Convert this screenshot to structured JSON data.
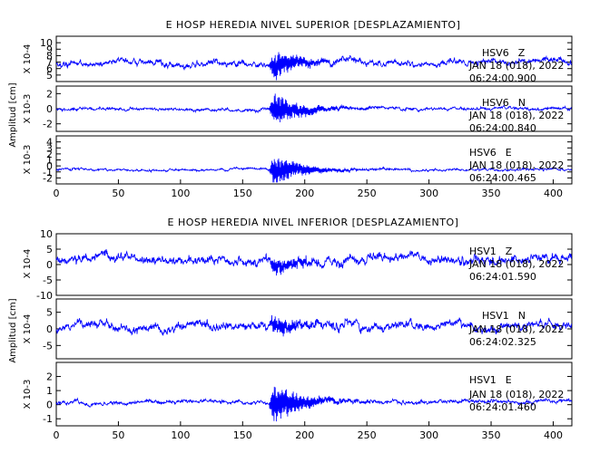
{
  "chart_data": [
    {
      "type": "line",
      "title": "E HOSP HEREDIA NIVEL SUPERIOR [DESPLAZAMIENTO]",
      "ylabel": "Amplitud [cm]",
      "xlim": [
        0,
        415
      ],
      "x_ticks": [
        0,
        50,
        100,
        150,
        200,
        250,
        300,
        350,
        400
      ],
      "x_tick_labels": [
        "0",
        "50",
        "100",
        "150",
        "200",
        "250",
        "300",
        "350",
        "400"
      ],
      "grid": false,
      "panels": [
        {
          "name": "HSV6 Z",
          "station": "HSV6",
          "component": "Z",
          "date": "JAN 18 (018), 2022",
          "time": "06:24:00.900",
          "scale": "X 10-4",
          "ylim": [
            4,
            11
          ],
          "y_ticks": [
            5,
            6,
            7,
            8,
            9,
            10
          ],
          "y_tick_labels": [
            "5",
            "6",
            "7",
            "8",
            "9",
            "10"
          ],
          "baseline": 6.8,
          "noise": 0.8,
          "event_amp": 2.3,
          "seed": 11,
          "values": []
        },
        {
          "name": "HSV6 N",
          "station": "HSV6",
          "component": "N",
          "date": "JAN 18 (018), 2022",
          "time": "06:24:00.840",
          "scale": "X 10-3",
          "ylim": [
            -3,
            3
          ],
          "y_ticks": [
            -2,
            0,
            2
          ],
          "y_tick_labels": [
            "-2",
            "0",
            "2"
          ],
          "baseline": 0,
          "noise": 0.35,
          "event_amp": 2.3,
          "seed": 23,
          "values": []
        },
        {
          "name": "HSV6 E",
          "station": "HSV6",
          "component": "E",
          "date": "JAN 18 (018), 2022",
          "time": "06:24:00.465",
          "scale": "X 10-3",
          "ylim": [
            -3,
            5
          ],
          "y_ticks": [
            -2,
            -1,
            0,
            1,
            2,
            3,
            4
          ],
          "y_tick_labels": [
            "-2",
            "-1",
            "0",
            "1",
            "2",
            "3",
            "4"
          ],
          "baseline": -0.6,
          "noise": 0.35,
          "event_amp": 2.8,
          "seed": 37,
          "values": []
        }
      ]
    },
    {
      "type": "line",
      "title": "E HOSP HEREDIA NIVEL INFERIOR [DESPLAZAMIENTO]",
      "ylabel": "Amplitud [cm]",
      "xlim": [
        0,
        415
      ],
      "x_ticks": [
        0,
        50,
        100,
        150,
        200,
        250,
        300,
        350,
        400
      ],
      "x_tick_labels": [
        "0",
        "50",
        "100",
        "150",
        "200",
        "250",
        "300",
        "350",
        "400"
      ],
      "grid": false,
      "panels": [
        {
          "name": "HSV1 Z",
          "station": "HSV1",
          "component": "Z",
          "date": "JAN 18 (018), 2022",
          "time": "06:24:01.590",
          "scale": "X 10-4",
          "ylim": [
            -10,
            10
          ],
          "y_ticks": [
            -10,
            -5,
            0,
            5,
            10
          ],
          "y_tick_labels": [
            "-10",
            "-5",
            "0",
            "5",
            "10"
          ],
          "baseline": 1.5,
          "noise": 2.5,
          "event_amp": 3.0,
          "seed": 41,
          "values": []
        },
        {
          "name": "HSV1 N",
          "station": "HSV1",
          "component": "N",
          "date": "JAN 18 (018), 2022",
          "time": "06:24:02.325",
          "scale": "X 10-4",
          "ylim": [
            -9,
            9
          ],
          "y_ticks": [
            -5,
            0,
            5
          ],
          "y_tick_labels": [
            "-5",
            "0",
            "5"
          ],
          "baseline": 0.5,
          "noise": 2.3,
          "event_amp": 3.0,
          "seed": 53,
          "values": []
        },
        {
          "name": "HSV1 E",
          "station": "HSV1",
          "component": "E",
          "date": "JAN 18 (018), 2022",
          "time": "06:24:01.460",
          "scale": "X 10-3",
          "ylim": [
            -1.5,
            3
          ],
          "y_ticks": [
            -1,
            0,
            1,
            2
          ],
          "y_tick_labels": [
            "-1",
            "0",
            "1",
            "2"
          ],
          "baseline": 0.2,
          "noise": 0.25,
          "event_amp": 1.6,
          "seed": 67,
          "values": []
        }
      ]
    }
  ],
  "colors": {
    "trace": "#0000ff",
    "frame": "#000000"
  }
}
